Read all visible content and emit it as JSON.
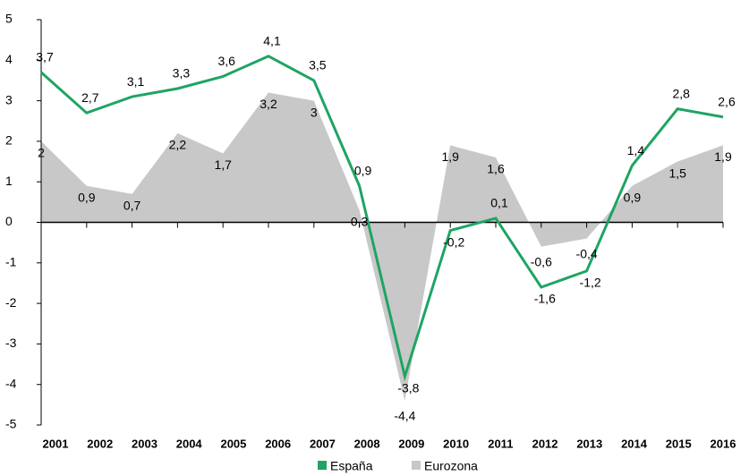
{
  "chart_data": {
    "type": "line",
    "categories": [
      "2001",
      "2002",
      "2003",
      "2004",
      "2005",
      "2006",
      "2007",
      "2008",
      "2009",
      "2010",
      "2011",
      "2012",
      "2013",
      "2014",
      "2015",
      "2016"
    ],
    "series": [
      {
        "name": "España",
        "color": "#1fa463",
        "values": [
          3.7,
          2.7,
          3.1,
          3.3,
          3.6,
          4.1,
          3.5,
          0.9,
          -3.8,
          -0.2,
          0.1,
          -1.6,
          -1.2,
          1.4,
          2.8,
          2.6
        ],
        "value_labels": [
          "3,7",
          "2,7",
          "3,1",
          "3,3",
          "3,6",
          "4,1",
          "3,5",
          "0,9",
          "-3,8",
          "-0,2",
          "0,1",
          "-1,6",
          "-1,2",
          "1,4",
          "2,8",
          "2,6"
        ]
      },
      {
        "name": "Eurozona",
        "color": "#c8c8c8",
        "fill": "area",
        "values": [
          2,
          0.9,
          0.7,
          2.2,
          1.7,
          3.2,
          3,
          0.3,
          -4.4,
          1.9,
          1.6,
          -0.6,
          -0.4,
          0.9,
          1.5,
          1.9
        ],
        "value_labels": [
          "2",
          "0,9",
          "0,7",
          "2,2",
          "1,7",
          "3,2",
          "3",
          "0,3",
          "-4,4",
          "1,9",
          "1,6",
          "-0,6",
          "-0,4",
          "0,9",
          "1,5",
          "1,9"
        ]
      }
    ],
    "ylim": [
      -5,
      5
    ],
    "yticks": [
      -5,
      -4,
      -3,
      -2,
      -1,
      0,
      1,
      2,
      3,
      4,
      5
    ],
    "legend": "bottom"
  }
}
